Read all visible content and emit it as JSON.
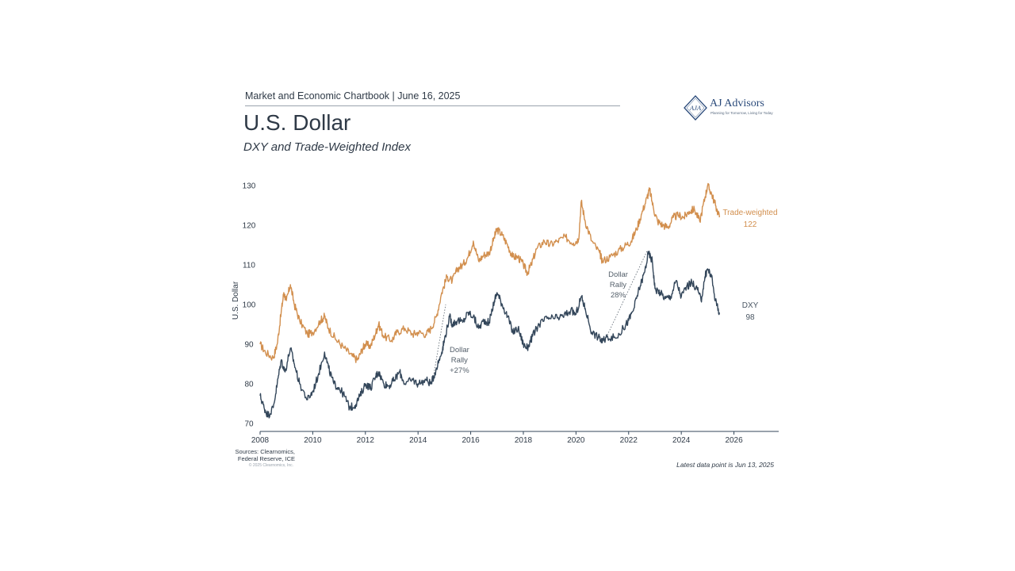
{
  "header": {
    "chartbook": "Market and Economic Chartbook | June 16, 2025",
    "title": "U.S. Dollar",
    "subtitle": "DXY and Trade-Weighted Index"
  },
  "logo": {
    "monogram": "AJA",
    "name": "AJ Advisors",
    "tagline": "Planning for Tomorrow, Living for Today"
  },
  "footer": {
    "sources_line1": "Sources: Clearnomics,",
    "sources_line2": "Federal Reserve, ICE",
    "copyright": "© 2025 Clearnomics, Inc.",
    "latest": "Latest data point is Jun 13, 2025"
  },
  "colors": {
    "trade_weighted": "#d28f4e",
    "dxy": "#33465a",
    "axis": "#33465a",
    "annotation": "#55606b"
  },
  "chart_data": {
    "type": "line",
    "ylabel": "U.S. Dollar",
    "xlabel": "",
    "xlim": [
      2008,
      2027.7
    ],
    "ylim": [
      70,
      132
    ],
    "x_ticks": [
      "2008",
      "2010",
      "2012",
      "2014",
      "2016",
      "2018",
      "2020",
      "2022",
      "2024",
      "2026"
    ],
    "y_ticks": [
      "70",
      "80",
      "90",
      "100",
      "110",
      "120",
      "130"
    ],
    "grid": false,
    "series": [
      {
        "name": "Trade-weighted",
        "end_label": "122",
        "points": [
          [
            2008.0,
            90
          ],
          [
            2008.2,
            88
          ],
          [
            2008.5,
            86.5
          ],
          [
            2008.65,
            90
          ],
          [
            2008.8,
            98
          ],
          [
            2008.9,
            103
          ],
          [
            2009.0,
            101
          ],
          [
            2009.15,
            105
          ],
          [
            2009.3,
            100
          ],
          [
            2009.5,
            96
          ],
          [
            2009.8,
            92.5
          ],
          [
            2010.0,
            93
          ],
          [
            2010.3,
            96
          ],
          [
            2010.45,
            97
          ],
          [
            2010.6,
            94
          ],
          [
            2010.9,
            91
          ],
          [
            2011.2,
            89
          ],
          [
            2011.5,
            87
          ],
          [
            2011.7,
            86
          ],
          [
            2011.9,
            89
          ],
          [
            2012.0,
            90
          ],
          [
            2012.2,
            89.5
          ],
          [
            2012.4,
            93
          ],
          [
            2012.5,
            95
          ],
          [
            2012.7,
            92
          ],
          [
            2013.0,
            91
          ],
          [
            2013.2,
            93
          ],
          [
            2013.5,
            94
          ],
          [
            2013.8,
            92.5
          ],
          [
            2014.0,
            93
          ],
          [
            2014.3,
            92.5
          ],
          [
            2014.5,
            94
          ],
          [
            2014.7,
            97
          ],
          [
            2014.9,
            103
          ],
          [
            2015.1,
            107
          ],
          [
            2015.3,
            106
          ],
          [
            2015.5,
            109
          ],
          [
            2015.7,
            110
          ],
          [
            2015.9,
            112
          ],
          [
            2016.1,
            116
          ],
          [
            2016.3,
            111
          ],
          [
            2016.5,
            112.5
          ],
          [
            2016.7,
            113
          ],
          [
            2016.9,
            117
          ],
          [
            2017.0,
            119
          ],
          [
            2017.2,
            117.5
          ],
          [
            2017.4,
            115
          ],
          [
            2017.6,
            112
          ],
          [
            2017.8,
            112
          ],
          [
            2018.0,
            110
          ],
          [
            2018.15,
            108
          ],
          [
            2018.3,
            110
          ],
          [
            2018.5,
            114
          ],
          [
            2018.8,
            116
          ],
          [
            2019.0,
            115
          ],
          [
            2019.3,
            116
          ],
          [
            2019.6,
            117
          ],
          [
            2019.9,
            115.5
          ],
          [
            2020.1,
            116.5
          ],
          [
            2020.2,
            126
          ],
          [
            2020.35,
            121
          ],
          [
            2020.6,
            116
          ],
          [
            2020.9,
            113
          ],
          [
            2021.0,
            111
          ],
          [
            2021.3,
            112
          ],
          [
            2021.6,
            113.5
          ],
          [
            2021.9,
            115
          ],
          [
            2022.1,
            116
          ],
          [
            2022.3,
            119
          ],
          [
            2022.5,
            123
          ],
          [
            2022.7,
            127
          ],
          [
            2022.8,
            129
          ],
          [
            2022.95,
            124
          ],
          [
            2023.1,
            121
          ],
          [
            2023.3,
            120
          ],
          [
            2023.5,
            119.5
          ],
          [
            2023.7,
            122
          ],
          [
            2023.9,
            122.5
          ],
          [
            2024.1,
            122
          ],
          [
            2024.3,
            123.5
          ],
          [
            2024.5,
            124
          ],
          [
            2024.7,
            121
          ],
          [
            2024.9,
            127
          ],
          [
            2025.0,
            130
          ],
          [
            2025.15,
            128
          ],
          [
            2025.3,
            125
          ],
          [
            2025.45,
            122
          ]
        ]
      },
      {
        "name": "DXY",
        "end_label": "98",
        "points": [
          [
            2008.0,
            77
          ],
          [
            2008.15,
            74
          ],
          [
            2008.3,
            72
          ],
          [
            2008.5,
            74
          ],
          [
            2008.65,
            80
          ],
          [
            2008.8,
            86
          ],
          [
            2008.95,
            83
          ],
          [
            2009.15,
            89
          ],
          [
            2009.3,
            85
          ],
          [
            2009.5,
            80
          ],
          [
            2009.8,
            76
          ],
          [
            2010.0,
            78
          ],
          [
            2010.2,
            82
          ],
          [
            2010.45,
            88
          ],
          [
            2010.6,
            84
          ],
          [
            2010.8,
            80
          ],
          [
            2011.0,
            79
          ],
          [
            2011.2,
            77
          ],
          [
            2011.4,
            74
          ],
          [
            2011.6,
            74.5
          ],
          [
            2011.8,
            77
          ],
          [
            2012.0,
            80
          ],
          [
            2012.2,
            79
          ],
          [
            2012.4,
            82
          ],
          [
            2012.5,
            83
          ],
          [
            2012.7,
            80
          ],
          [
            2012.9,
            79.5
          ],
          [
            2013.1,
            81
          ],
          [
            2013.3,
            83
          ],
          [
            2013.5,
            80
          ],
          [
            2013.8,
            81
          ],
          [
            2014.0,
            80
          ],
          [
            2014.3,
            81
          ],
          [
            2014.5,
            80
          ],
          [
            2014.7,
            84
          ],
          [
            2014.9,
            88
          ],
          [
            2015.0,
            91
          ],
          [
            2015.2,
            97
          ],
          [
            2015.3,
            95
          ],
          [
            2015.5,
            96
          ],
          [
            2015.7,
            95.5
          ],
          [
            2015.9,
            98
          ],
          [
            2016.1,
            97
          ],
          [
            2016.3,
            94
          ],
          [
            2016.5,
            96
          ],
          [
            2016.7,
            95.5
          ],
          [
            2016.9,
            101
          ],
          [
            2017.0,
            103
          ],
          [
            2017.2,
            100
          ],
          [
            2017.4,
            97
          ],
          [
            2017.6,
            93
          ],
          [
            2017.8,
            94
          ],
          [
            2018.0,
            90
          ],
          [
            2018.15,
            89
          ],
          [
            2018.35,
            92
          ],
          [
            2018.6,
            95
          ],
          [
            2018.9,
            96.5
          ],
          [
            2019.2,
            96.5
          ],
          [
            2019.5,
            97
          ],
          [
            2019.8,
            98.5
          ],
          [
            2020.0,
            97.5
          ],
          [
            2020.2,
            102
          ],
          [
            2020.35,
            99
          ],
          [
            2020.6,
            93
          ],
          [
            2020.9,
            91.5
          ],
          [
            2021.0,
            90.5
          ],
          [
            2021.2,
            92
          ],
          [
            2021.5,
            91.5
          ],
          [
            2021.8,
            94
          ],
          [
            2022.0,
            96
          ],
          [
            2022.2,
            99
          ],
          [
            2022.4,
            104
          ],
          [
            2022.6,
            108
          ],
          [
            2022.75,
            113
          ],
          [
            2022.9,
            111
          ],
          [
            2023.0,
            104
          ],
          [
            2023.2,
            103
          ],
          [
            2023.4,
            101.5
          ],
          [
            2023.6,
            102
          ],
          [
            2023.8,
            106
          ],
          [
            2024.0,
            102
          ],
          [
            2024.2,
            104.5
          ],
          [
            2024.4,
            105.5
          ],
          [
            2024.6,
            104
          ],
          [
            2024.75,
            101
          ],
          [
            2024.9,
            107
          ],
          [
            2025.0,
            109
          ],
          [
            2025.15,
            107
          ],
          [
            2025.3,
            101
          ],
          [
            2025.45,
            98
          ]
        ]
      }
    ],
    "annotations": [
      {
        "lines": [
          "Dollar",
          "Rally",
          "+27%"
        ],
        "at": [
          2015.15,
          88
        ],
        "arrow_from": [
          2014.55,
          80.5
        ],
        "arrow_to": [
          2015.05,
          100
        ]
      },
      {
        "lines": [
          "Dollar",
          "Rally",
          "28%"
        ],
        "at": [
          2021.6,
          107
        ],
        "arrow_from": [
          2021.1,
          91
        ],
        "arrow_to": [
          2022.7,
          113.5
        ]
      }
    ]
  }
}
